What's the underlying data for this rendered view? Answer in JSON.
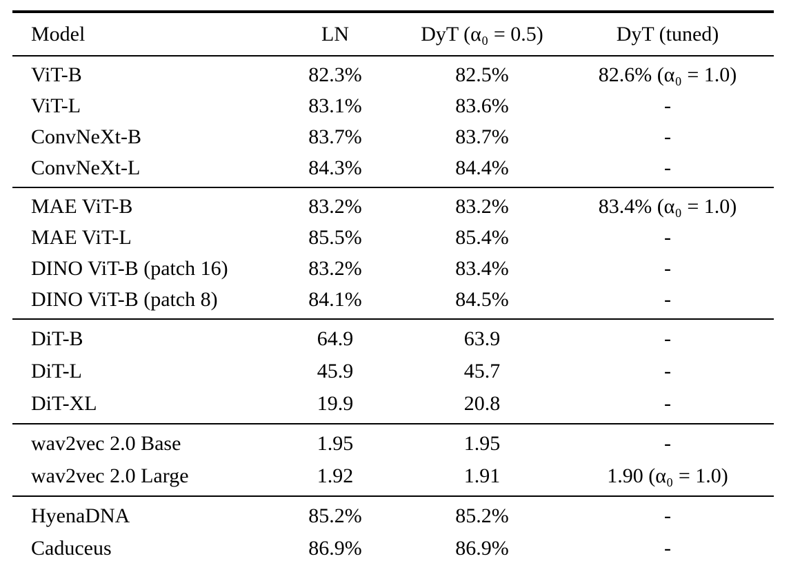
{
  "colors": {
    "background": "#ffffff",
    "text": "#000000",
    "rules": "#000000"
  },
  "table": {
    "columns": [
      "Model",
      "LN",
      "DyT (α₀ = 0.5)",
      "DyT (tuned)"
    ],
    "sections": [
      {
        "rows": [
          [
            "ViT-B",
            "82.3%",
            "82.5%",
            "82.6% (α₀ = 1.0)"
          ],
          [
            "ViT-L",
            "83.1%",
            "83.6%",
            "-"
          ],
          [
            "ConvNeXt-B",
            "83.7%",
            "83.7%",
            "-"
          ],
          [
            "ConvNeXt-L",
            "84.3%",
            "84.4%",
            "-"
          ]
        ]
      },
      {
        "rows": [
          [
            "MAE ViT-B",
            "83.2%",
            "83.2%",
            "83.4% (α₀ = 1.0)"
          ],
          [
            "MAE ViT-L",
            "85.5%",
            "85.4%",
            "-"
          ],
          [
            "DINO ViT-B (patch 16)",
            "83.2%",
            "83.4%",
            "-"
          ],
          [
            "DINO ViT-B (patch 8)",
            "84.1%",
            "84.5%",
            "-"
          ]
        ]
      },
      {
        "rows": [
          [
            "DiT-B",
            "64.9",
            "63.9",
            "-"
          ],
          [
            "DiT-L",
            "45.9",
            "45.7",
            "-"
          ],
          [
            "DiT-XL",
            "19.9",
            "20.8",
            "-"
          ]
        ]
      },
      {
        "rows": [
          [
            "wav2vec 2.0 Base",
            "1.95",
            "1.95",
            "-"
          ],
          [
            "wav2vec 2.0 Large",
            "1.92",
            "1.91",
            "1.90 (α₀ = 1.0)"
          ]
        ]
      },
      {
        "rows": [
          [
            "HyenaDNA",
            "85.2%",
            "85.2%",
            "-"
          ],
          [
            "Caduceus",
            "86.9%",
            "86.9%",
            "-"
          ]
        ]
      }
    ]
  }
}
